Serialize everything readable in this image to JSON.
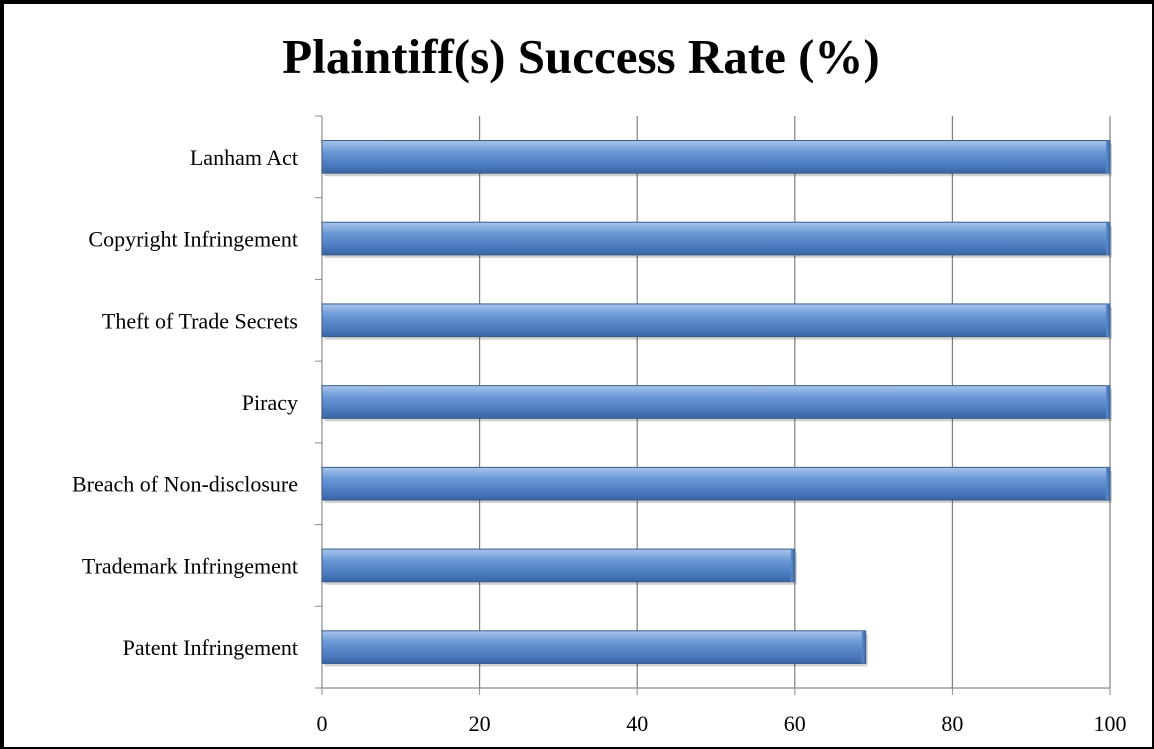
{
  "chart_data": {
    "type": "bar",
    "orientation": "horizontal",
    "title": "Plaintiff(s) Success Rate (%)",
    "xlabel": "",
    "ylabel": "",
    "categories": [
      "Lanham Act",
      "Copyright Infringement",
      "Theft of Trade Secrets",
      "Piracy",
      "Breach of Non-disclosure",
      "Trademark Infringement",
      "Patent Infringement"
    ],
    "values": [
      100,
      100,
      100,
      100,
      100,
      60,
      69
    ],
    "xlim": [
      0,
      100
    ],
    "xticks": [
      "0",
      "20",
      "40",
      "60",
      "80",
      "100"
    ],
    "grid": "vertical",
    "legend": "none",
    "bar_color": "#4f81bd"
  }
}
